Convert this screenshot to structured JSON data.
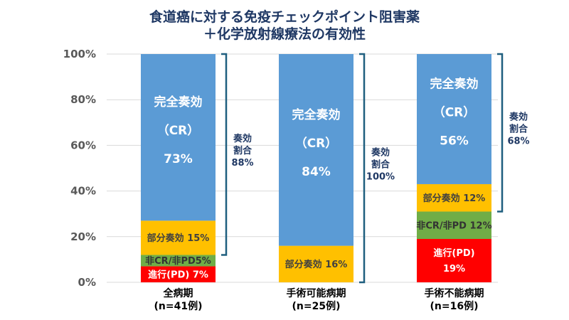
{
  "chart_data": {
    "type": "bar",
    "stacked": true,
    "title": [
      "食道癌に対する免疫チェックポイント阻害薬",
      "＋化学放射線療法の有効性"
    ],
    "ylim": [
      0,
      100
    ],
    "yticks": [
      "0%",
      "20%",
      "40%",
      "60%",
      "80%",
      "100%"
    ],
    "ytick_values": [
      0,
      20,
      40,
      60,
      80,
      100
    ],
    "grid": true,
    "categories": [
      [
        "全病期",
        "(n=41例)"
      ],
      [
        "手術可能病期",
        "(n=25例)"
      ],
      [
        "手術不能病期",
        "(n=16例)"
      ]
    ],
    "series": [
      {
        "name": "進行(PD)",
        "color": "#FF0000",
        "values": [
          7,
          0,
          19
        ]
      },
      {
        "name": "非CR/非PD",
        "color": "#70AD47",
        "values": [
          5,
          0,
          12
        ]
      },
      {
        "name": "部分奏効",
        "color": "#FFC000",
        "values": [
          15,
          16,
          12
        ]
      },
      {
        "name": "完全奏効 (CR)",
        "color": "#5B9BD5",
        "values": [
          73,
          84,
          56
        ]
      }
    ],
    "segment_labels": [
      [
        [
          "進行(PD) 7%"
        ],
        [
          "非CR/非PD5%"
        ],
        [
          "部分奏効 15%"
        ],
        [
          "完全奏効",
          "（CR）",
          "73%"
        ]
      ],
      [
        [],
        [],
        [
          "部分奏効 16%"
        ],
        [
          "完全奏効",
          "（CR）",
          "84%"
        ]
      ],
      [
        [
          "進行(PD)",
          "19%"
        ],
        [
          "非CR/非PD 12%"
        ],
        [
          "部分奏効 12%"
        ],
        [
          "完全奏効",
          "（CR）",
          "56%"
        ]
      ]
    ],
    "annotations": [
      {
        "bar": 0,
        "from": 12,
        "to": 100,
        "text": [
          "奏効",
          "割合",
          "88%"
        ]
      },
      {
        "bar": 1,
        "from": 0,
        "to": 100,
        "text": [
          "奏効",
          "割合",
          "100%"
        ]
      },
      {
        "bar": 2,
        "from": 31,
        "to": 100,
        "text": [
          "奏効",
          "割合",
          "68%"
        ]
      }
    ],
    "bracket_color": "#1F5F7F"
  }
}
